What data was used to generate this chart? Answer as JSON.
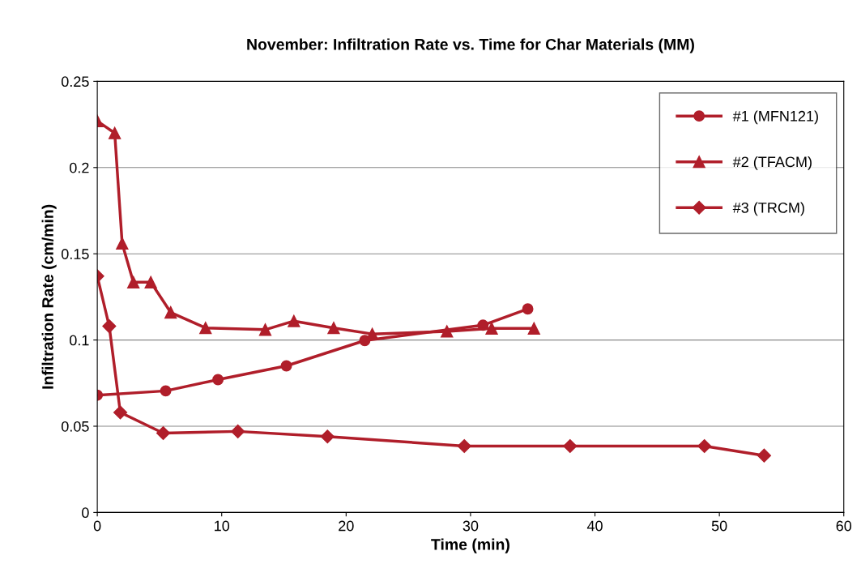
{
  "chart_data": {
    "type": "line",
    "title": "November: Infiltration Rate vs. Time for Char Materials (MM)",
    "xlabel": "Time (min)",
    "ylabel": "Infiltration Rate (cm/min)",
    "xlim": [
      0,
      60
    ],
    "xticks": [
      0,
      10,
      20,
      30,
      40,
      50,
      60
    ],
    "ylim": [
      0,
      0.25
    ],
    "yticks": [
      0,
      0.05,
      0.1,
      0.15,
      0.2,
      0.25
    ],
    "grid": "y",
    "legend": "top right",
    "line_style": "solid",
    "series": [
      {
        "name": "#1 (MFN121)",
        "color": "#b01e2a",
        "marker": "circle",
        "x": [
          0,
          5.5,
          9.7,
          15.2,
          21.5,
          31,
          34.6
        ],
        "values": [
          0.068,
          0.0705,
          0.077,
          0.085,
          0.0997,
          0.1086,
          0.118
        ]
      },
      {
        "name": "#2 (TFACM)",
        "color": "#b01e2a",
        "marker": "triangle",
        "x": [
          0,
          1.4,
          2.0,
          2.9,
          4.3,
          5.9,
          8.7,
          13.5,
          15.8,
          19,
          22.1,
          28.1,
          31.7,
          35.1
        ],
        "values": [
          0.227,
          0.22,
          0.156,
          0.1335,
          0.1335,
          0.116,
          0.107,
          0.106,
          0.111,
          0.107,
          0.1035,
          0.105,
          0.1067,
          0.1067
        ]
      },
      {
        "name": "#3 (TRCM)",
        "color": "#b01e2a",
        "marker": "diamond",
        "x": [
          0,
          0.96,
          1.85,
          5.3,
          11.3,
          18.5,
          29.5,
          38,
          48.8,
          53.6
        ],
        "values": [
          0.137,
          0.108,
          0.058,
          0.046,
          0.047,
          0.044,
          0.0385,
          0.0385,
          0.0385,
          0.033
        ]
      }
    ]
  }
}
